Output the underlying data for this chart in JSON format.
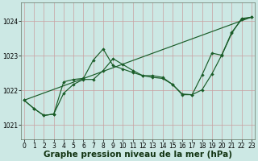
{
  "xlabel": "Graphe pression niveau de la mer (hPa)",
  "ylim": [
    1020.6,
    1024.55
  ],
  "xlim": [
    -0.3,
    23.3
  ],
  "yticks": [
    1021,
    1022,
    1023,
    1024
  ],
  "xticks": [
    0,
    1,
    2,
    3,
    4,
    5,
    6,
    7,
    8,
    9,
    10,
    11,
    12,
    13,
    14,
    15,
    16,
    17,
    18,
    19,
    20,
    21,
    22,
    23
  ],
  "bg_color": "#cce8e4",
  "grid_color": "#c8a0a0",
  "line_color": "#1a5c28",
  "line1_y": [
    1021.72,
    1021.48,
    1021.28,
    1021.32,
    1021.92,
    1022.18,
    1022.32,
    1022.32,
    1022.58,
    1022.92,
    1022.75,
    1022.58,
    1022.43,
    1022.43,
    1022.38,
    1022.18,
    1021.88,
    1021.88,
    1022.02,
    1022.48,
    1023.03,
    1023.68,
    1024.05,
    1024.12
  ],
  "line2_y": [
    1021.72,
    1021.48,
    1021.28,
    1021.32,
    1022.25,
    1022.32,
    1022.35,
    1022.88,
    1023.2,
    1022.72,
    1022.62,
    1022.52,
    1022.43,
    1022.38,
    1022.35,
    1022.18,
    1021.9,
    1021.88,
    1022.45,
    1023.08,
    1023.02,
    1023.65,
    1024.08,
    1024.12
  ],
  "line3_y": [
    1021.72,
    1024.12
  ],
  "line3_x": [
    0,
    23
  ],
  "tick_fontsize": 5.5,
  "label_fontsize": 7.5,
  "label_fontweight": "bold",
  "marker_size": 2.2,
  "line_width": 0.85,
  "figsize": [
    3.2,
    2.0
  ],
  "dpi": 100
}
